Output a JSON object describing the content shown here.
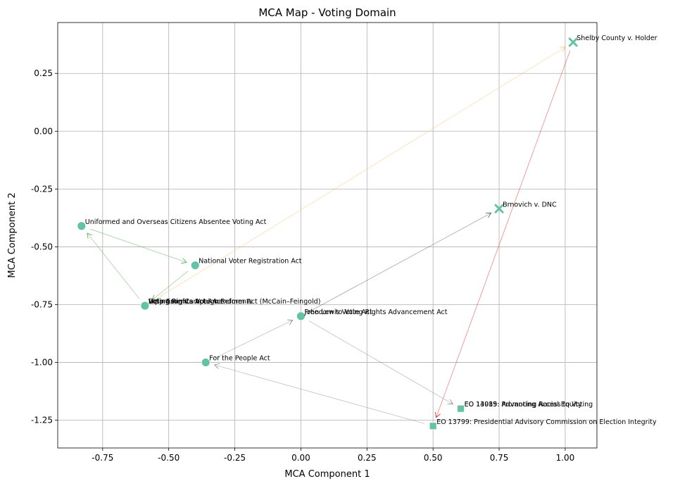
{
  "chart_data": {
    "type": "scatter",
    "title": "MCA Map - Voting Domain",
    "xlabel": "MCA Component 1",
    "ylabel": "MCA Component 2",
    "xlim": [
      -0.92,
      1.12
    ],
    "ylim": [
      -1.37,
      0.47
    ],
    "xticks": [
      "-0.75",
      "-0.50",
      "-0.25",
      "0.00",
      "0.25",
      "0.50",
      "0.75",
      "1.00"
    ],
    "xtick_values": [
      -0.75,
      -0.5,
      -0.25,
      0.0,
      0.25,
      0.5,
      0.75,
      1.0
    ],
    "yticks": [
      "0.25",
      "0.00",
      "-0.25",
      "-0.50",
      "-0.75",
      "-1.00",
      "-1.25"
    ],
    "ytick_values": [
      0.25,
      0.0,
      -0.25,
      -0.5,
      -0.75,
      -1.0,
      -1.25
    ],
    "grid": true,
    "marker_color": "#66c2a5",
    "points": [
      {
        "label": "Uniformed and Overseas Citizens Absentee Voting Act",
        "x": -0.83,
        "y": -0.41,
        "marker": "circle"
      },
      {
        "label": "National Voter Registration Act",
        "x": -0.4,
        "y": -0.58,
        "marker": "circle"
      },
      {
        "label": "Voting Rights Act",
        "x": -0.59,
        "y": -0.755,
        "marker": "circle"
      },
      {
        "label": "Help America Vote Act",
        "x": -0.59,
        "y": -0.755,
        "marker": "circle"
      },
      {
        "label": "Voting Rights Act Amendments",
        "x": -0.59,
        "y": -0.755,
        "marker": "circle"
      },
      {
        "label": "Bipartisan Campaign Reform Act (McCain–Feingold)",
        "x": -0.59,
        "y": -0.755,
        "marker": "circle"
      },
      {
        "label": "Freedom to Vote Act",
        "x": 0.0,
        "y": -0.8,
        "marker": "circle"
      },
      {
        "label": "John Lewis Voting Rights Advancement Act",
        "x": 0.0,
        "y": -0.8,
        "marker": "circle"
      },
      {
        "label": "For the People Act",
        "x": -0.36,
        "y": -1.0,
        "marker": "circle"
      },
      {
        "label": "Shelby County v. Holder",
        "x": 1.03,
        "y": 0.385,
        "marker": "x"
      },
      {
        "label": "Brnovich v. DNC",
        "x": 0.75,
        "y": -0.335,
        "marker": "x"
      },
      {
        "label": "EO 14019: Promoting Access to Voting",
        "x": 0.605,
        "y": -1.2,
        "marker": "square"
      },
      {
        "label": "EO 13985: Advancing Racial Equity",
        "x": 0.605,
        "y": -1.2,
        "marker": "square"
      },
      {
        "label": "EO 13799: Presidential Advisory Commission on Election Integrity",
        "x": 0.5,
        "y": -1.275,
        "marker": "square"
      }
    ],
    "arrows": [
      {
        "from": [
          -0.59,
          -0.755
        ],
        "to": [
          -0.83,
          -0.41
        ],
        "color": "#4daf4a"
      },
      {
        "from": [
          -0.83,
          -0.41
        ],
        "to": [
          -0.4,
          -0.58
        ],
        "color": "#4daf4a"
      },
      {
        "from": [
          -0.4,
          -0.58
        ],
        "to": [
          -0.59,
          -0.755
        ],
        "color": "#4daf4a"
      },
      {
        "from": [
          -0.59,
          -0.755
        ],
        "to": [
          1.03,
          0.385
        ],
        "color": "#fdbf6f"
      },
      {
        "from": [
          1.03,
          0.385
        ],
        "to": [
          0.5,
          -1.275
        ],
        "color": "#e41a1c"
      },
      {
        "from": [
          0.0,
          -0.8
        ],
        "to": [
          0.75,
          -0.335
        ],
        "color": "#555555"
      },
      {
        "from": [
          0.0,
          -0.8
        ],
        "to": [
          0.605,
          -1.2
        ],
        "color": "#888888"
      },
      {
        "from": [
          0.5,
          -1.275
        ],
        "to": [
          -0.36,
          -1.0
        ],
        "color": "#888888"
      },
      {
        "from": [
          -0.36,
          -1.0
        ],
        "to": [
          0.0,
          -0.8
        ],
        "color": "#888888"
      }
    ]
  }
}
